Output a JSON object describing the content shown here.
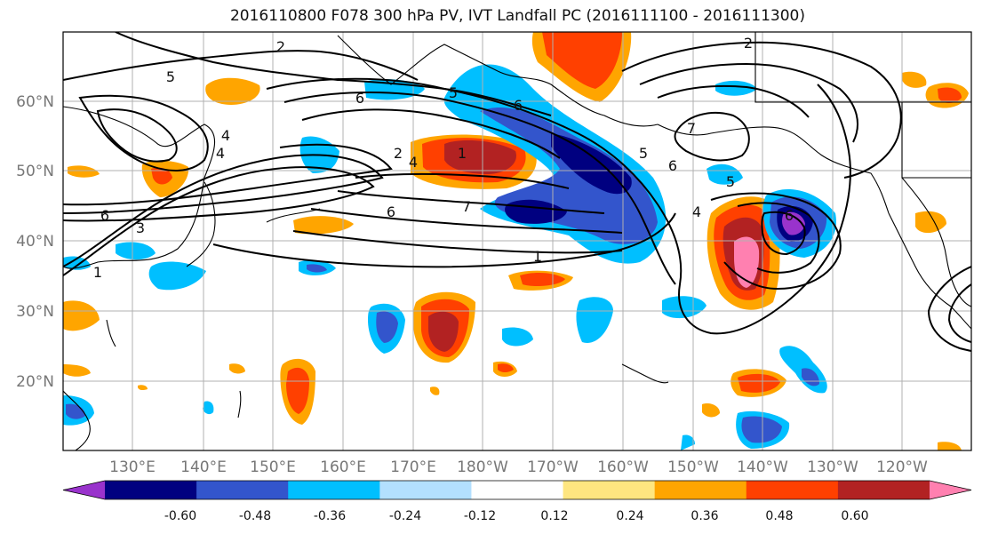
{
  "title": "2016110800 F078 300 hPa PV, IVT Landfall PC (2016111100 - 2016111300)",
  "lat_labels": [
    "60°N",
    "50°N",
    "40°N",
    "30°N",
    "20°N"
  ],
  "lon_labels": [
    "130°E",
    "140°E",
    "150°E",
    "160°E",
    "170°E",
    "180°W",
    "170°W",
    "160°W",
    "150°W",
    "140°W",
    "130°W",
    "120°W"
  ],
  "colorbar": {
    "colors": [
      "#9933cc",
      "#000080",
      "#3355cc",
      "#00bfff",
      "#b3e0ff",
      "#ffffff",
      "#ffe680",
      "#ffa500",
      "#ff4000",
      "#b22222",
      "#ff80b0"
    ],
    "tick_labels": [
      "-0.60",
      "-0.48",
      "-0.36",
      "-0.24",
      "-0.12",
      "0.12",
      "0.24",
      "0.36",
      "0.48",
      "0.60"
    ]
  },
  "contour_labels": [
    "2",
    "5",
    "4",
    "6",
    "3",
    "1",
    "2",
    "5",
    "6",
    "4",
    "7",
    "6",
    "1",
    "5",
    "6",
    "7",
    "2",
    "5",
    "6",
    "4",
    "6",
    "4",
    "1"
  ]
}
